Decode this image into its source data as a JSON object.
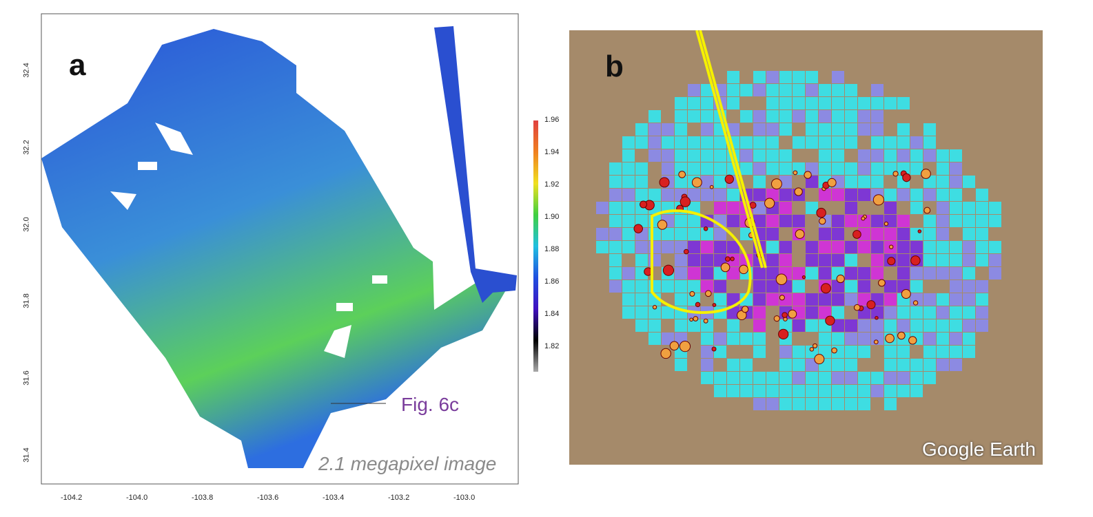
{
  "panel_a": {
    "label": "a",
    "x_ticks": [
      "-104.2",
      "-104.0",
      "-103.8",
      "-103.6",
      "-103.4",
      "-103.2",
      "-103.0"
    ],
    "y_ticks": [
      "32.4",
      "32.2",
      "32.0",
      "31.8",
      "31.6",
      "31.4"
    ],
    "annotation": "Fig. 6c",
    "caption": "2.1 megapixel image"
  },
  "colorbar": {
    "ticks": [
      "1.96",
      "1.94",
      "1.92",
      "1.90",
      "1.88",
      "1.86",
      "1.84",
      "1.82"
    ]
  },
  "panel_b": {
    "label": "b",
    "watermark": "Google Earth"
  },
  "colors": {
    "cyan": "#33e6f0",
    "purple": "#7a2ee0",
    "magenta": "#d42be0",
    "terrain": "#a58a6a",
    "track": "#f5f000"
  }
}
